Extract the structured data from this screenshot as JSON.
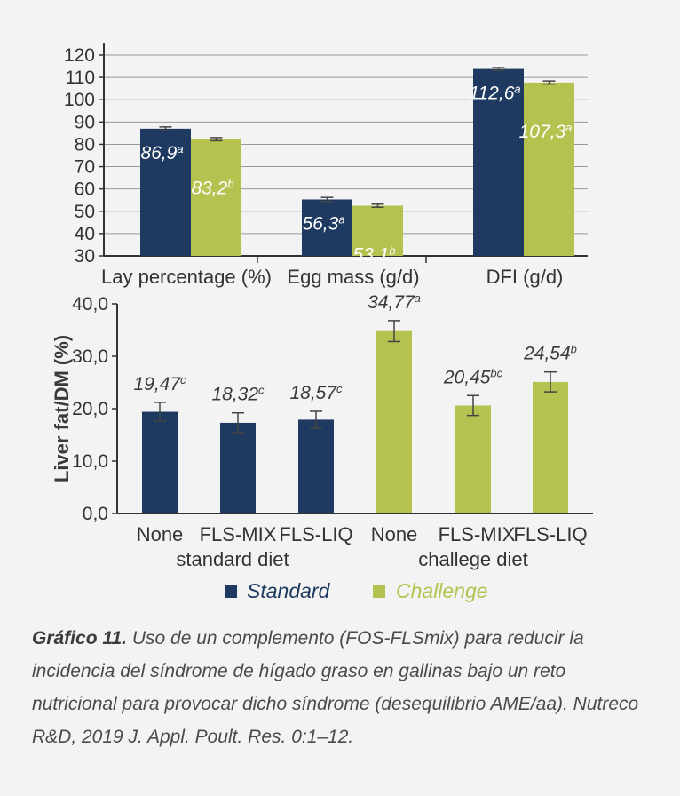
{
  "colors": {
    "standard": "#1f3a60",
    "challenge": "#b5c250",
    "axis": "#333333",
    "grid": "#999999",
    "text": "#333333",
    "label_dark": "#3a3a3a",
    "background": "#f3f3f3"
  },
  "chart_data": [
    {
      "type": "bar",
      "categories": [
        "Lay percentage (%)",
        "Egg mass (g/d)",
        "DFI (g/d)"
      ],
      "series": [
        {
          "name": "Standard",
          "values": [
            86.9,
            56.3,
            112.6
          ],
          "labels": [
            "86,9",
            "56,3",
            "112,6"
          ],
          "letters": [
            "a",
            "a",
            "a"
          ]
        },
        {
          "name": "Challenge",
          "values": [
            83.2,
            53.1,
            107.3
          ],
          "labels": [
            "83,2",
            "53,1",
            "107,3"
          ],
          "letters": [
            "b",
            "b",
            "a"
          ]
        }
      ],
      "bar_heights": [
        [
          87.0,
          55.3,
          113.8
        ],
        [
          82.3,
          52.5,
          107.7
        ]
      ],
      "errors": [
        [
          0.8,
          0.9,
          0.6
        ],
        [
          0.7,
          0.7,
          0.7
        ]
      ],
      "ylim": [
        30,
        120
      ],
      "yticks": [
        "30",
        "40",
        "50",
        "60",
        "70",
        "80",
        "90",
        "100",
        "110",
        "120"
      ],
      "grid": true
    },
    {
      "type": "bar",
      "categories": [
        "None",
        "FLS-MIX",
        "FLS-LIQ",
        "None",
        "FLS-MIX",
        "FLS-LIQ"
      ],
      "groups": [
        "standard diet",
        "challege diet"
      ],
      "ylabel": "Liver fat/DM (%)",
      "values": [
        19.47,
        18.32,
        18.57,
        34.77,
        20.45,
        24.54
      ],
      "labels": [
        "19,47",
        "18,32",
        "18,57",
        "34,77",
        "20,45",
        "24,54"
      ],
      "letters": [
        "c",
        "c",
        "c",
        "a",
        "bc",
        "b"
      ],
      "bar_heights": [
        19.4,
        17.3,
        17.9,
        34.8,
        20.6,
        25.1
      ],
      "errors": [
        1.8,
        1.9,
        1.6,
        2.0,
        1.9,
        1.9
      ],
      "series_of_bar": [
        "Standard",
        "Standard",
        "Standard",
        "Challenge",
        "Challenge",
        "Challenge"
      ],
      "ylim": [
        0,
        40
      ],
      "yticks": [
        "0,0",
        "10,0",
        "20,0",
        "30,0",
        "40,0"
      ],
      "grid": false
    }
  ],
  "legend": {
    "standard": "Standard",
    "challenge": "Challenge"
  },
  "caption": {
    "bold": "Gráfico 11.",
    "text": "Uso de un complemento (FOS-FLSmix) para reducir la incidencia del síndrome de hígado graso en gallinas bajo un reto nutricional para provocar dicho síndrome (desequilibrio AME/aa). Nutreco R&D, 2019 J. Appl. Poult. Res. 0:1–12."
  }
}
